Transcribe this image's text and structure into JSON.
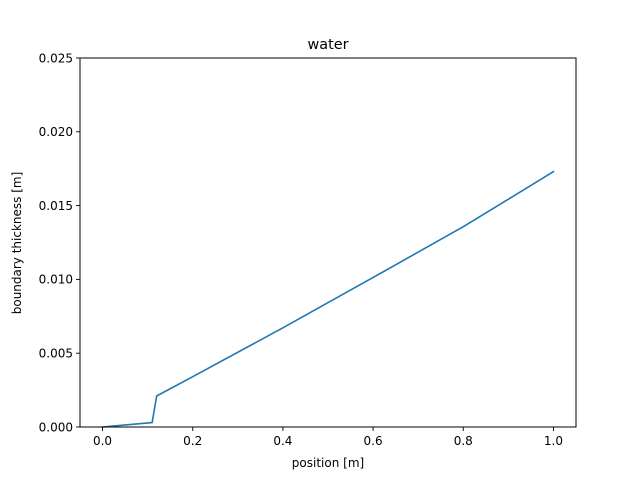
{
  "chart_data": {
    "type": "line",
    "title": "water",
    "xlabel": "position [m]",
    "ylabel": "boundary thickness [m]",
    "xlim": [
      -0.05,
      1.05
    ],
    "ylim": [
      0.0,
      0.025
    ],
    "xticks": [
      0.0,
      0.2,
      0.4,
      0.6,
      0.8,
      1.0
    ],
    "xtick_labels": [
      "0.0",
      "0.2",
      "0.4",
      "0.6",
      "0.8",
      "1.0"
    ],
    "yticks": [
      0.0,
      0.005,
      0.01,
      0.015,
      0.02,
      0.025
    ],
    "ytick_labels": [
      "0.000",
      "0.005",
      "0.010",
      "0.015",
      "0.020",
      "0.025"
    ],
    "grid": false,
    "series": [
      {
        "color": "#1f77b4",
        "x": [
          0.0,
          0.11,
          0.12,
          0.2,
          0.4,
          0.6,
          0.8,
          1.0
        ],
        "y": [
          0.0,
          0.0003,
          0.0021,
          0.00341,
          0.00672,
          0.01013,
          0.01357,
          0.0173
        ]
      }
    ]
  }
}
